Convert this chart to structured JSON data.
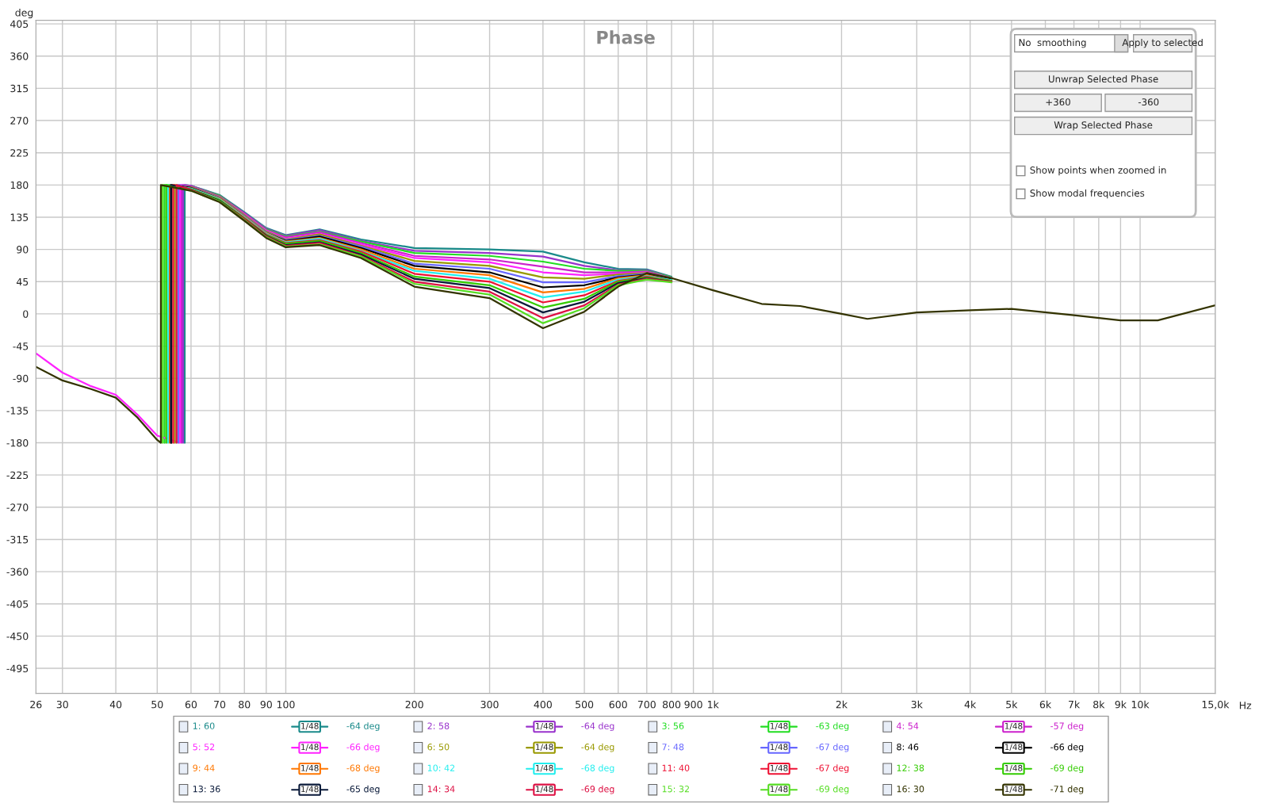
{
  "chart_data": {
    "type": "line",
    "title": "Phase",
    "xlabel": "Hz",
    "ylabel": "deg",
    "log": "x",
    "xlim": [
      26,
      15000
    ],
    "ylim": [
      -530,
      410
    ],
    "xticks": [
      26,
      30,
      40,
      50,
      60,
      70,
      80,
      90,
      100,
      200,
      300,
      400,
      500,
      600,
      700,
      800,
      900,
      {
        "value": 1000,
        "label": "1k"
      },
      {
        "value": 2000,
        "label": "2k"
      },
      {
        "value": 3000,
        "label": "3k"
      },
      {
        "value": 4000,
        "label": "4k"
      },
      {
        "value": 5000,
        "label": "5k"
      },
      {
        "value": 6000,
        "label": "6k"
      },
      {
        "value": 7000,
        "label": "7k"
      },
      {
        "value": 8000,
        "label": "8k"
      },
      {
        "value": 9000,
        "label": "9k"
      },
      {
        "value": 10000,
        "label": "10k"
      },
      {
        "value": 15000,
        "label": "15,0k"
      }
    ],
    "yticks": [
      405,
      360,
      315,
      270,
      225,
      180,
      135,
      90,
      45,
      0,
      -45,
      -90,
      -135,
      -180,
      -225,
      -270,
      -315,
      -360,
      -405,
      -450,
      -495
    ],
    "grid": true,
    "legend": "bottom",
    "line_style": "solid",
    "marker": "none",
    "annotations": [
      "No  smoothing",
      "Apply to selected",
      "Unwrap Selected Phase",
      "+360",
      "-360",
      "Wrap Selected Phase",
      "Show points when zoomed in",
      "Show modal frequencies",
      "1/48",
      "-64 deg",
      "1/48",
      "-64 deg",
      "1/48",
      "-63 deg",
      "1/48",
      "-57 deg",
      "1/48",
      "-66 deg",
      "1/48",
      "-64 deg",
      "1/48",
      "-67 deg",
      "1/48",
      "-66 deg",
      "1/48",
      "-68 deg",
      "1/48",
      "-68 deg",
      "1/48",
      "-67 deg",
      "1/48",
      "-69 deg",
      "1/48",
      "-65 deg",
      "1/48",
      "-69 deg",
      "1/48",
      "-69 deg",
      "1/48",
      "-71 deg"
    ],
    "series": [
      {
        "name": "1: 60",
        "color": "#1a8a8a",
        "x": [
          58,
          58,
          60,
          70,
          80,
          90,
          100,
          120,
          150,
          200,
          300,
          400,
          500,
          600,
          700,
          800
        ],
        "values": [
          -180,
          180,
          179,
          166,
          142,
          120,
          110,
          118,
          104,
          92,
          90,
          87,
          72,
          63,
          62,
          52
        ]
      },
      {
        "name": "2: 58",
        "color": "#9933cc",
        "x": [
          57.5,
          57.5,
          60,
          70,
          80,
          90,
          100,
          120,
          150,
          200,
          300,
          400,
          500,
          600,
          700,
          800
        ],
        "values": [
          -180,
          180,
          179,
          165,
          141,
          119,
          109,
          117,
          102,
          88,
          85,
          80,
          67,
          61,
          61,
          51
        ]
      },
      {
        "name": "3: 56",
        "color": "#22dd22",
        "x": [
          52,
          52,
          60,
          70,
          80,
          90,
          100,
          120,
          150,
          200,
          300,
          400,
          500,
          600,
          700,
          800
        ],
        "values": [
          -180,
          180,
          178,
          165,
          140,
          118,
          108,
          115,
          101,
          85,
          81,
          73,
          63,
          60,
          60,
          51
        ]
      },
      {
        "name": "4: 54",
        "color": "#cc22cc",
        "x": [
          57,
          57,
          60,
          70,
          80,
          90,
          100,
          120,
          150,
          200,
          300,
          400,
          500,
          600,
          700,
          800
        ],
        "values": [
          -180,
          180,
          178,
          164,
          140,
          117,
          107,
          114,
          99,
          81,
          76,
          66,
          58,
          58,
          59,
          50
        ]
      },
      {
        "name": "5: 52",
        "color": "#ff22ff",
        "x": [
          26,
          30,
          35,
          40,
          45,
          50,
          56.5,
          56.5,
          60,
          70,
          80,
          90,
          100,
          120,
          150,
          200,
          300,
          400,
          500,
          600,
          700,
          800
        ],
        "values": [
          -55,
          -82,
          -101,
          -113,
          -141,
          -170,
          -180,
          180,
          177,
          163,
          139,
          116,
          105,
          112,
          97,
          78,
          72,
          58,
          54,
          56,
          58,
          50
        ]
      },
      {
        "name": "6: 50",
        "color": "#999900",
        "x": [
          55,
          55,
          60,
          70,
          80,
          90,
          100,
          120,
          150,
          200,
          300,
          400,
          500,
          600,
          700,
          800
        ],
        "values": [
          -180,
          180,
          177,
          163,
          138,
          115,
          104,
          111,
          95,
          74,
          67,
          51,
          49,
          55,
          57,
          49
        ]
      },
      {
        "name": "7: 48",
        "color": "#6666ff",
        "x": [
          56,
          56,
          60,
          70,
          80,
          90,
          100,
          120,
          150,
          200,
          300,
          400,
          500,
          600,
          700,
          800
        ],
        "values": [
          -180,
          180,
          176,
          162,
          137,
          114,
          103,
          109,
          94,
          70,
          63,
          44,
          44,
          53,
          56,
          48
        ]
      },
      {
        "name": "8: 46",
        "color": "#000000",
        "x": [
          54,
          54,
          60,
          70,
          80,
          90,
          100,
          120,
          150,
          200,
          300,
          400,
          500,
          600,
          700,
          800
        ],
        "values": [
          -180,
          180,
          176,
          161,
          136,
          113,
          102,
          108,
          92,
          67,
          58,
          37,
          40,
          51,
          55,
          48
        ]
      },
      {
        "name": "9: 44",
        "color": "#ff7700",
        "x": [
          53.5,
          53.5,
          60,
          70,
          80,
          90,
          100,
          120,
          150,
          200,
          300,
          400,
          500,
          600,
          700,
          800
        ],
        "values": [
          -180,
          180,
          175,
          161,
          136,
          113,
          101,
          106,
          90,
          63,
          54,
          30,
          35,
          50,
          54,
          47
        ]
      },
      {
        "name": "10: 42",
        "color": "#22eeee",
        "x": [
          53,
          53,
          60,
          70,
          80,
          90,
          100,
          120,
          150,
          200,
          300,
          400,
          500,
          600,
          700,
          800
        ],
        "values": [
          -180,
          180,
          175,
          160,
          135,
          112,
          100,
          105,
          88,
          60,
          49,
          23,
          31,
          48,
          53,
          47
        ]
      },
      {
        "name": "11: 40",
        "color": "#ee1133",
        "x": [
          54.5,
          54.5,
          60,
          70,
          80,
          90,
          100,
          120,
          150,
          200,
          300,
          400,
          500,
          600,
          700,
          800
        ],
        "values": [
          -180,
          180,
          174,
          159,
          134,
          111,
          99,
          103,
          87,
          56,
          45,
          16,
          26,
          46,
          52,
          46
        ]
      },
      {
        "name": "12: 38",
        "color": "#33cc00",
        "x": [
          52.5,
          52.5,
          60,
          70,
          80,
          90,
          100,
          120,
          150,
          200,
          300,
          400,
          500,
          600,
          700,
          800
        ],
        "values": [
          -180,
          180,
          174,
          159,
          133,
          110,
          98,
          102,
          85,
          52,
          40,
          9,
          21,
          45,
          51,
          46
        ]
      },
      {
        "name": "13: 36",
        "color": "#0a1a3a",
        "x": [
          53.8,
          53.8,
          60,
          70,
          80,
          90,
          100,
          120,
          150,
          200,
          300,
          400,
          500,
          600,
          700,
          800
        ],
        "values": [
          -180,
          180,
          173,
          158,
          132,
          109,
          96,
          100,
          83,
          49,
          36,
          2,
          17,
          43,
          50,
          45
        ]
      },
      {
        "name": "14: 34",
        "color": "#dd1144",
        "x": [
          55.5,
          55.5,
          60,
          70,
          80,
          90,
          100,
          120,
          150,
          200,
          300,
          400,
          500,
          600,
          700,
          800
        ],
        "values": [
          -180,
          180,
          173,
          157,
          132,
          108,
          95,
          99,
          81,
          45,
          31,
          -6,
          12,
          41,
          49,
          45
        ]
      },
      {
        "name": "15: 32",
        "color": "#55dd22",
        "x": [
          51.5,
          51.5,
          60,
          70,
          80,
          90,
          100,
          120,
          150,
          200,
          300,
          400,
          500,
          600,
          700,
          800
        ],
        "values": [
          -180,
          180,
          172,
          157,
          131,
          107,
          94,
          97,
          80,
          42,
          27,
          -13,
          8,
          40,
          48,
          44
        ]
      },
      {
        "name": "16: 30",
        "color": "#333300",
        "x": [
          26,
          30,
          35,
          40,
          45,
          50,
          51,
          51,
          60,
          70,
          80,
          90,
          100,
          120,
          150,
          200,
          300,
          400,
          500,
          600,
          700,
          800,
          1000,
          1300,
          1600,
          2000,
          2300,
          3000,
          4000,
          5000,
          7000,
          9000,
          11000,
          15000
        ],
        "values": [
          -74,
          -93,
          -105,
          -117,
          -145,
          -176,
          -180,
          180,
          172,
          156,
          130,
          106,
          93,
          96,
          78,
          38,
          22,
          -20,
          3,
          38,
          57,
          50,
          33,
          14,
          11,
          0,
          -7,
          2,
          5,
          7,
          -2,
          -9,
          -9,
          12
        ]
      }
    ]
  }
}
